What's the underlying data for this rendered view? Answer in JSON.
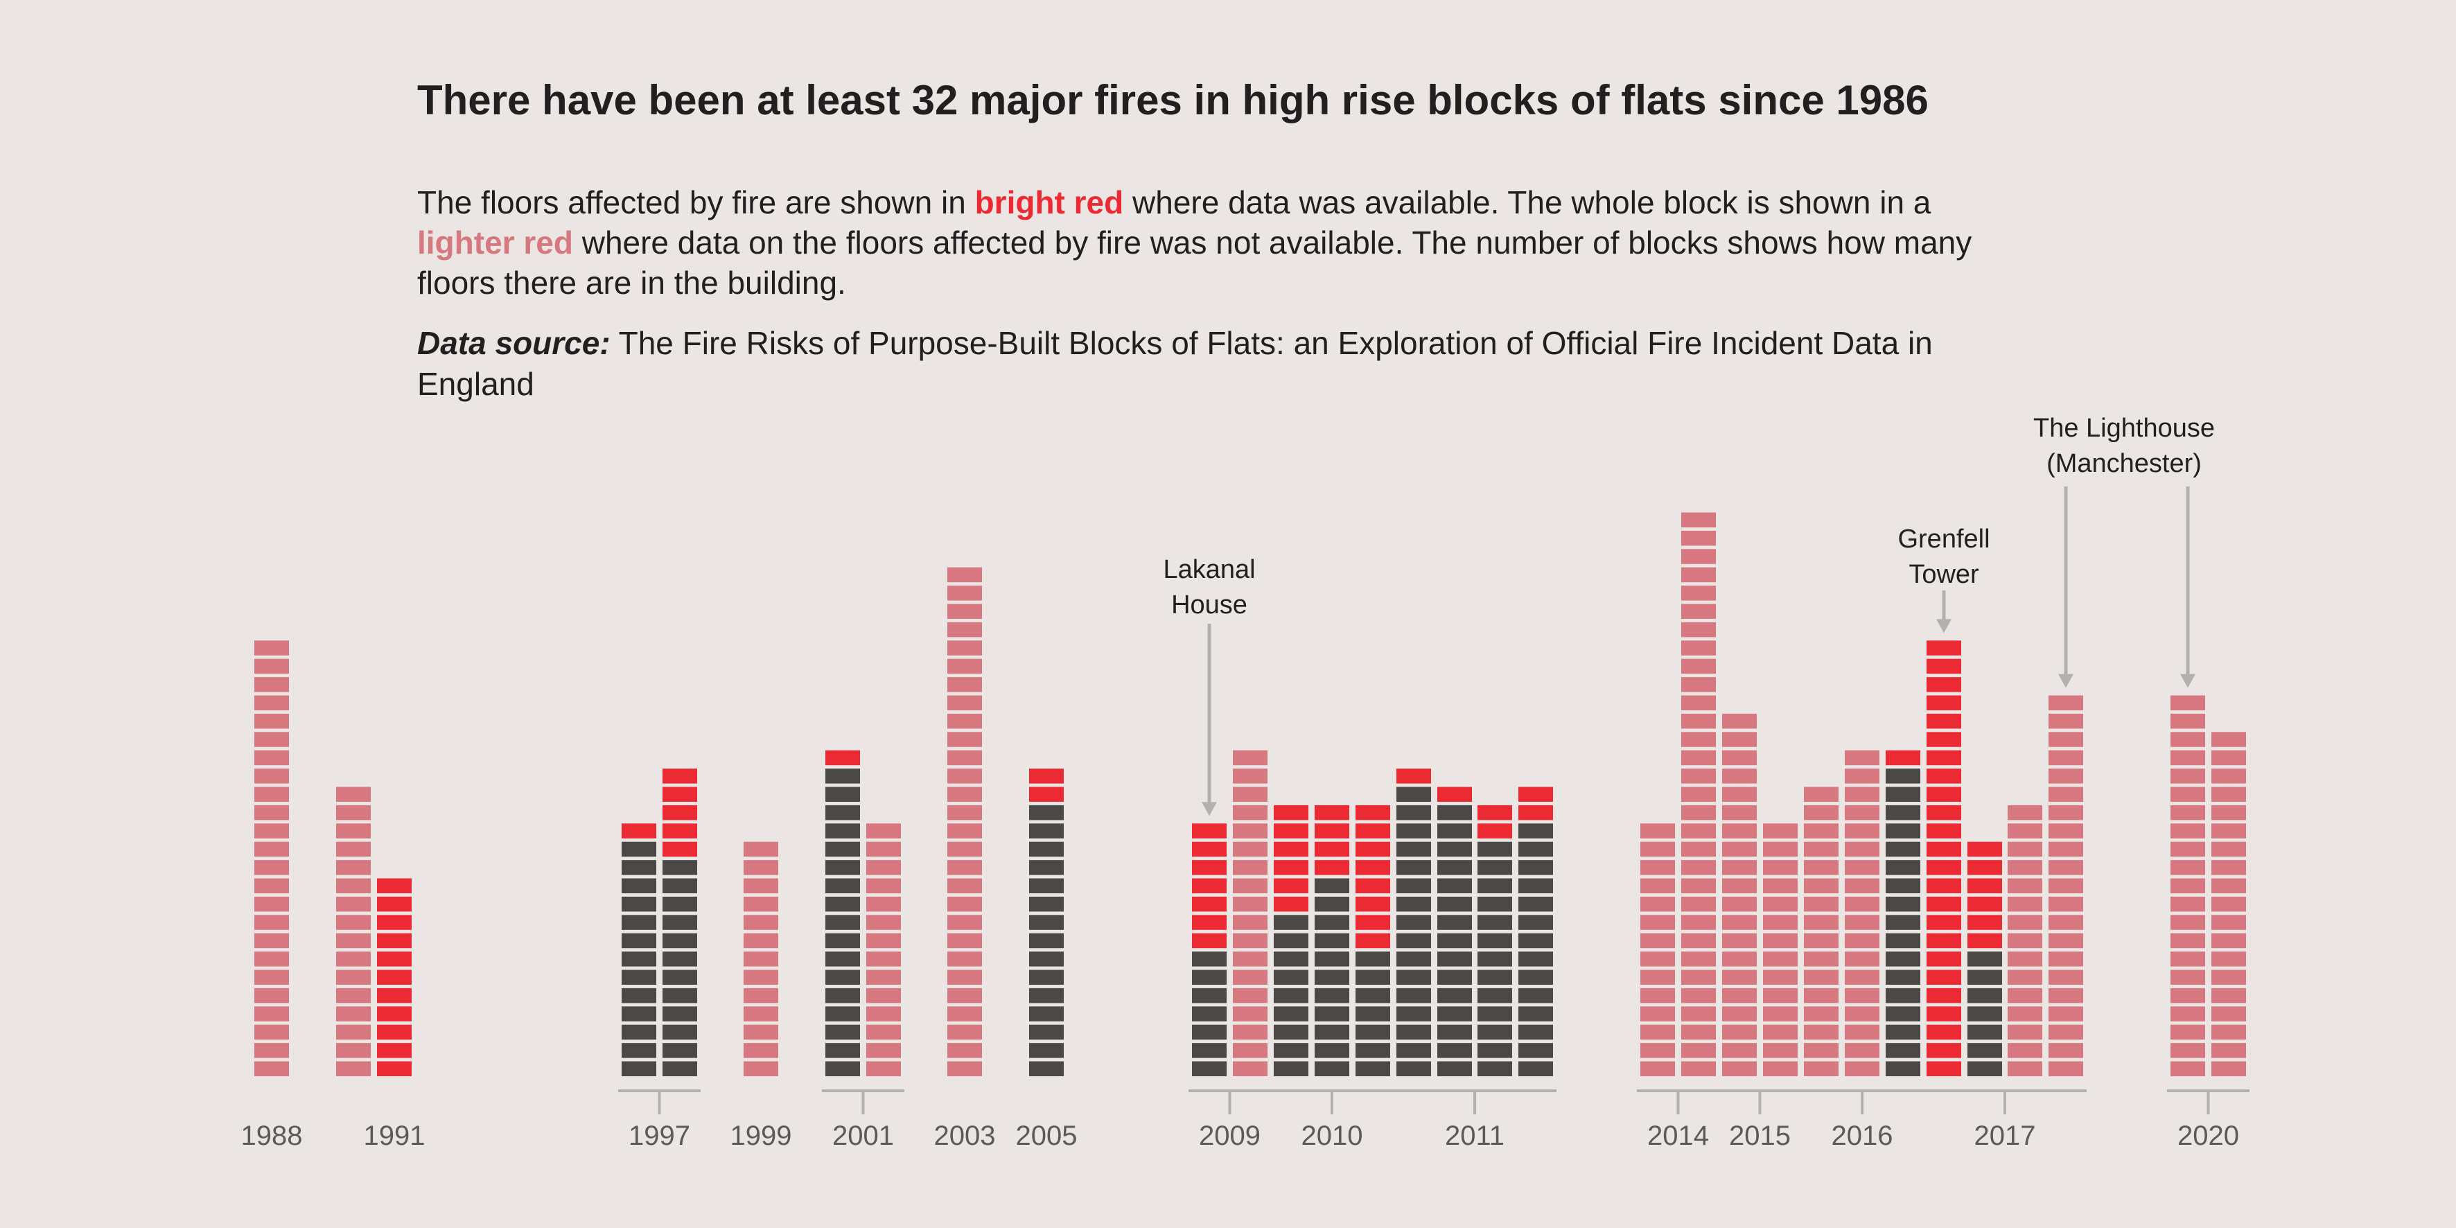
{
  "title": "There have been at least 32 major fires in high rise blocks of flats since 1986",
  "description": {
    "line1_a": "The floors affected by fire are shown in ",
    "bright_red": "bright red",
    "line1_b": " where data was available.  The whole block is shown in a",
    "lighter_red": "lighter red",
    "line2_b": " where data on the floors affected by fire was not available. The number of blocks shows how many",
    "line3": "floors there are in the building."
  },
  "source": {
    "label": "Data source:",
    "line1": " The Fire Risks of Purpose-Built Blocks of Flats: an Exploration of Official Fire Incident Data in",
    "line2": "England"
  },
  "colors": {
    "fire": "#ec2a33",
    "unknown": "#d7777f",
    "unaffected": "#4b4848",
    "background": "#ebe6e3",
    "axis": "#b3b1b0"
  },
  "chart_data": {
    "type": "bar",
    "unit": "floors",
    "buildings": [
      {
        "year": "1988",
        "floors": 24,
        "fire_floors": null
      },
      {
        "year": "1991",
        "floors": 16,
        "fire_floors": null
      },
      {
        "year": "1991",
        "floors": 11,
        "fire_floors": [
          1,
          11
        ]
      },
      {
        "year": "1997",
        "floors": 14,
        "fire_floors": [
          14,
          14
        ]
      },
      {
        "year": "1997",
        "floors": 17,
        "fire_floors": [
          13,
          17
        ]
      },
      {
        "year": "1999",
        "floors": 13,
        "fire_floors": null
      },
      {
        "year": "2001",
        "floors": 18,
        "fire_floors": [
          18,
          18
        ]
      },
      {
        "year": "2001",
        "floors": 14,
        "fire_floors": null
      },
      {
        "year": "2003",
        "floors": 28,
        "fire_floors": null
      },
      {
        "year": "2005",
        "floors": 17,
        "fire_floors": [
          16,
          17
        ]
      },
      {
        "year": "2009",
        "floors": 14,
        "fire_floors": [
          8,
          14
        ],
        "annotation": "Lakanal House"
      },
      {
        "year": "2009",
        "floors": 18,
        "fire_floors": null
      },
      {
        "year": "2010",
        "floors": 15,
        "fire_floors": [
          10,
          15
        ]
      },
      {
        "year": "2010",
        "floors": 15,
        "fire_floors": [
          12,
          15
        ]
      },
      {
        "year": "2010",
        "floors": 15,
        "fire_floors": [
          8,
          15
        ]
      },
      {
        "year": "2011",
        "floors": 17,
        "fire_floors": [
          17,
          17
        ]
      },
      {
        "year": "2011",
        "floors": 16,
        "fire_floors": [
          16,
          16
        ]
      },
      {
        "year": "2011",
        "floors": 15,
        "fire_floors": [
          14,
          15
        ]
      },
      {
        "year": "2011",
        "floors": 16,
        "fire_floors": [
          15,
          16
        ]
      },
      {
        "year": "2014",
        "floors": 14,
        "fire_floors": null
      },
      {
        "year": "2014",
        "floors": 31,
        "fire_floors": null
      },
      {
        "year": "2015",
        "floors": 20,
        "fire_floors": null
      },
      {
        "year": "2015",
        "floors": 14,
        "fire_floors": null
      },
      {
        "year": "2016",
        "floors": 16,
        "fire_floors": null
      },
      {
        "year": "2016",
        "floors": 18,
        "fire_floors": null
      },
      {
        "year": "2016",
        "floors": 18,
        "fire_floors": [
          18,
          18
        ]
      },
      {
        "year": "2017",
        "floors": 24,
        "fire_floors": [
          1,
          24
        ],
        "annotation": "Grenfell Tower"
      },
      {
        "year": "2017",
        "floors": 13,
        "fire_floors": [
          8,
          13
        ]
      },
      {
        "year": "2017",
        "floors": 15,
        "fire_floors": null
      },
      {
        "year": "2017",
        "floors": 21,
        "fire_floors": null,
        "annotation": "The Lighthouse (Manchester)"
      },
      {
        "year": "2020",
        "floors": 21,
        "fire_floors": null
      },
      {
        "year": "2020",
        "floors": 19,
        "fire_floors": null
      }
    ],
    "year_labels": [
      "1988",
      "1991",
      "1997",
      "1999",
      "2001",
      "2003",
      "2005",
      "2009",
      "2010",
      "2011",
      "2014",
      "2015",
      "2016",
      "2017",
      "2020"
    ],
    "annotations": [
      {
        "text_lines": [
          "Lakanal",
          "House"
        ],
        "building_index": 10
      },
      {
        "text_lines": [
          "Grenfell",
          "Tower"
        ],
        "building_index": 26
      },
      {
        "text_lines": [
          "The Lighthouse",
          "(Manchester)"
        ],
        "building_index": 29,
        "second_pointer_index": 30
      }
    ]
  }
}
